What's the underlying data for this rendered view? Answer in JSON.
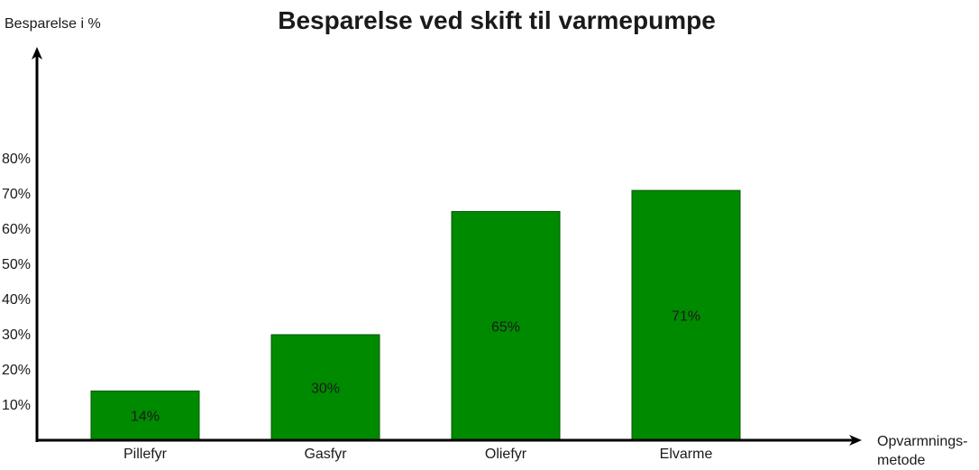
{
  "chart_data": {
    "type": "bar",
    "title": "Besparelse ved skift til varmepumpe",
    "ylabel": "Besparelse i %",
    "xlabel": [
      "Opvarmnings-",
      "metode"
    ],
    "categories": [
      "Pillefyr",
      "Gasfyr",
      "Oliefyr",
      "Elvarme"
    ],
    "values": [
      14,
      30,
      65,
      71
    ],
    "data_labels": [
      "14%",
      "30%",
      "65%",
      "71%"
    ],
    "yticks": [
      10,
      20,
      30,
      40,
      50,
      60,
      70,
      80
    ],
    "ytick_labels": [
      "10%",
      "20%",
      "30%",
      "40%",
      "50%",
      "60%",
      "70%",
      "80%"
    ],
    "ylim": [
      0,
      110
    ],
    "grid": false,
    "bar_color": "#008a00",
    "bar_stroke": "#005700"
  }
}
